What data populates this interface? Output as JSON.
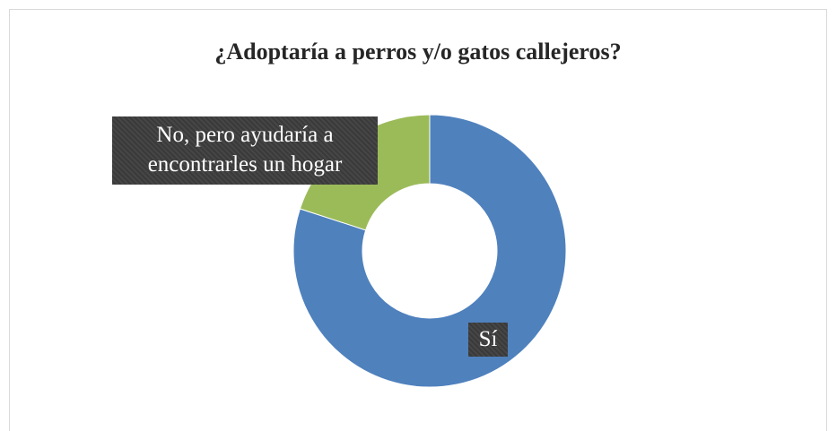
{
  "chart_data": {
    "type": "donut",
    "title": "¿Adoptaría a perros y/o gatos callejeros?",
    "categories": [
      "Sí",
      "No, pero ayudaría a encontrarles un hogar"
    ],
    "values": [
      80,
      20
    ],
    "colors": [
      "#4f81bd",
      "#9bbb59"
    ]
  }
}
